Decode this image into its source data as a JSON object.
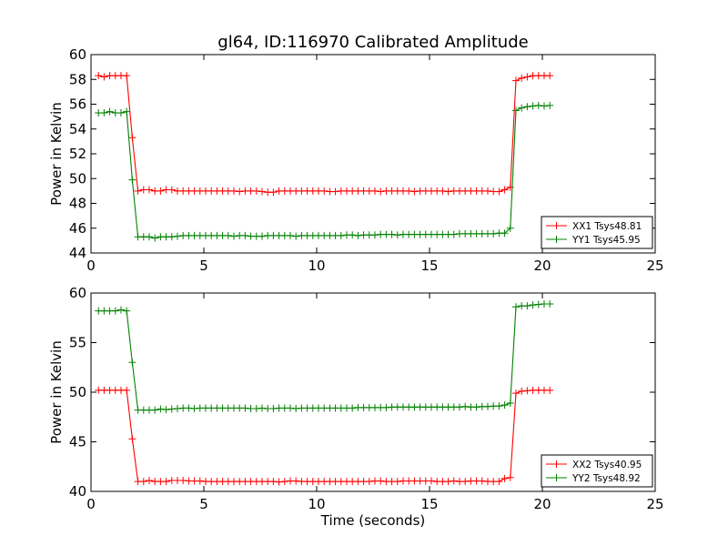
{
  "chart_data": [
    {
      "type": "line",
      "title": "gl64, ID:116970 Calibrated Amplitude",
      "xlabel": "",
      "ylabel": "Power in Kelvin",
      "xlim": [
        0,
        25
      ],
      "ylim": [
        44,
        60
      ],
      "xticks": [
        0,
        5,
        10,
        15,
        20,
        25
      ],
      "yticks": [
        44,
        46,
        48,
        50,
        52,
        54,
        56,
        58,
        60
      ],
      "grid": false,
      "legend_position": "lower-right",
      "series": [
        {
          "name": "XX1 Tsys48.81",
          "color": "#ff0000",
          "marker": "+",
          "x": [
            0.33,
            0.58,
            0.83,
            1.08,
            1.33,
            1.58,
            1.83,
            2.08,
            2.33,
            2.58,
            2.83,
            3.08,
            3.33,
            3.58,
            3.83,
            4.08,
            4.33,
            4.58,
            4.83,
            5.08,
            5.33,
            5.58,
            5.83,
            6.08,
            6.33,
            6.58,
            6.83,
            7.08,
            7.33,
            7.58,
            7.83,
            8.08,
            8.33,
            8.58,
            8.83,
            9.08,
            9.33,
            9.58,
            9.83,
            10.08,
            10.33,
            10.58,
            10.83,
            11.08,
            11.33,
            11.58,
            11.83,
            12.08,
            12.33,
            12.58,
            12.83,
            13.08,
            13.33,
            13.58,
            13.83,
            14.08,
            14.33,
            14.58,
            14.83,
            15.08,
            15.33,
            15.58,
            15.83,
            16.08,
            16.33,
            16.58,
            16.83,
            17.08,
            17.33,
            17.58,
            17.83,
            18.08,
            18.33,
            18.58,
            18.83,
            19.08,
            19.33,
            19.58,
            19.83,
            20.08,
            20.33
          ],
          "y": [
            58.3,
            58.2,
            58.3,
            58.3,
            58.3,
            58.3,
            53.3,
            49.0,
            49.1,
            49.1,
            49.0,
            49.0,
            49.1,
            49.1,
            49.0,
            49.0,
            49.0,
            49.0,
            49.0,
            49.0,
            49.0,
            49.0,
            49.0,
            49.0,
            49.0,
            48.95,
            49.0,
            49.0,
            49.0,
            48.95,
            48.9,
            48.9,
            49.0,
            49.0,
            49.0,
            49.0,
            49.0,
            49.0,
            49.0,
            49.0,
            49.0,
            48.95,
            48.95,
            49.0,
            49.0,
            49.0,
            49.0,
            49.0,
            49.0,
            49.0,
            48.95,
            49.0,
            49.0,
            49.0,
            49.0,
            49.0,
            48.95,
            49.0,
            49.0,
            49.0,
            49.0,
            49.0,
            48.95,
            49.0,
            49.0,
            49.0,
            49.0,
            49.0,
            49.0,
            49.0,
            48.95,
            48.95,
            49.1,
            49.3,
            57.9,
            58.1,
            58.2,
            58.3,
            58.3,
            58.3,
            58.3
          ]
        },
        {
          "name": "YY1 Tsys45.95",
          "color": "#008000",
          "marker": "+",
          "x": [
            0.33,
            0.58,
            0.83,
            1.08,
            1.33,
            1.58,
            1.83,
            2.08,
            2.33,
            2.58,
            2.83,
            3.08,
            3.33,
            3.58,
            3.83,
            4.08,
            4.33,
            4.58,
            4.83,
            5.08,
            5.33,
            5.58,
            5.83,
            6.08,
            6.33,
            6.58,
            6.83,
            7.08,
            7.33,
            7.58,
            7.83,
            8.08,
            8.33,
            8.58,
            8.83,
            9.08,
            9.33,
            9.58,
            9.83,
            10.08,
            10.33,
            10.58,
            10.83,
            11.08,
            11.33,
            11.58,
            11.83,
            12.08,
            12.33,
            12.58,
            12.83,
            13.08,
            13.33,
            13.58,
            13.83,
            14.08,
            14.33,
            14.58,
            14.83,
            15.08,
            15.33,
            15.58,
            15.83,
            16.08,
            16.33,
            16.58,
            16.83,
            17.08,
            17.33,
            17.58,
            17.83,
            18.08,
            18.33,
            18.58,
            18.83,
            19.08,
            19.33,
            19.58,
            19.83,
            20.08,
            20.33
          ],
          "y": [
            55.3,
            55.3,
            55.4,
            55.3,
            55.3,
            55.4,
            49.9,
            45.3,
            45.3,
            45.3,
            45.2,
            45.3,
            45.3,
            45.3,
            45.35,
            45.4,
            45.4,
            45.4,
            45.4,
            45.4,
            45.4,
            45.4,
            45.4,
            45.4,
            45.35,
            45.4,
            45.4,
            45.35,
            45.35,
            45.35,
            45.4,
            45.4,
            45.4,
            45.4,
            45.4,
            45.35,
            45.4,
            45.4,
            45.4,
            45.4,
            45.4,
            45.4,
            45.4,
            45.4,
            45.45,
            45.45,
            45.4,
            45.45,
            45.45,
            45.45,
            45.5,
            45.5,
            45.5,
            45.45,
            45.5,
            45.5,
            45.5,
            45.5,
            45.5,
            45.5,
            45.5,
            45.5,
            45.5,
            45.5,
            45.55,
            45.55,
            45.55,
            45.55,
            45.55,
            45.55,
            45.55,
            45.6,
            45.6,
            46.0,
            55.5,
            55.7,
            55.8,
            55.85,
            55.9,
            55.85,
            55.9
          ]
        }
      ]
    },
    {
      "type": "line",
      "title": "",
      "xlabel": "Time (seconds)",
      "ylabel": "Power in Kelvin",
      "xlim": [
        0,
        25
      ],
      "ylim": [
        40,
        60
      ],
      "xticks": [
        0,
        5,
        10,
        15,
        20,
        25
      ],
      "yticks": [
        40,
        45,
        50,
        55,
        60
      ],
      "grid": false,
      "legend_position": "lower-right",
      "series": [
        {
          "name": "XX2 Tsys40.95",
          "color": "#ff0000",
          "marker": "+",
          "x": [
            0.33,
            0.58,
            0.83,
            1.08,
            1.33,
            1.58,
            1.83,
            2.08,
            2.33,
            2.58,
            2.83,
            3.08,
            3.33,
            3.58,
            3.83,
            4.08,
            4.33,
            4.58,
            4.83,
            5.08,
            5.33,
            5.58,
            5.83,
            6.08,
            6.33,
            6.58,
            6.83,
            7.08,
            7.33,
            7.58,
            7.83,
            8.08,
            8.33,
            8.58,
            8.83,
            9.08,
            9.33,
            9.58,
            9.83,
            10.08,
            10.33,
            10.58,
            10.83,
            11.08,
            11.33,
            11.58,
            11.83,
            12.08,
            12.33,
            12.58,
            12.83,
            13.08,
            13.33,
            13.58,
            13.83,
            14.08,
            14.33,
            14.58,
            14.83,
            15.08,
            15.33,
            15.58,
            15.83,
            16.08,
            16.33,
            16.58,
            16.83,
            17.08,
            17.33,
            17.58,
            17.83,
            18.08,
            18.33,
            18.58,
            18.83,
            19.08,
            19.33,
            19.58,
            19.83,
            20.08,
            20.33
          ],
          "y": [
            50.2,
            50.2,
            50.2,
            50.2,
            50.2,
            50.2,
            45.3,
            41.0,
            41.0,
            41.1,
            41.0,
            41.0,
            41.0,
            41.1,
            41.1,
            41.1,
            41.05,
            41.05,
            41.05,
            41.0,
            41.0,
            41.0,
            41.0,
            41.0,
            41.0,
            41.0,
            41.0,
            41.0,
            41.0,
            41.0,
            41.0,
            41.0,
            40.95,
            41.0,
            41.05,
            41.05,
            41.0,
            41.0,
            41.0,
            41.0,
            41.0,
            41.0,
            41.0,
            41.0,
            41.0,
            41.0,
            41.0,
            41.0,
            41.0,
            41.05,
            41.05,
            41.0,
            41.0,
            41.0,
            41.05,
            41.05,
            41.05,
            41.05,
            41.05,
            41.05,
            41.0,
            41.0,
            41.0,
            41.05,
            41.0,
            41.0,
            41.05,
            41.05,
            41.05,
            41.0,
            41.0,
            41.0,
            41.3,
            41.4,
            49.9,
            50.1,
            50.15,
            50.2,
            50.2,
            50.2,
            50.2
          ]
        },
        {
          "name": "YY2 Tsys48.92",
          "color": "#008000",
          "marker": "+",
          "x": [
            0.33,
            0.58,
            0.83,
            1.08,
            1.33,
            1.58,
            1.83,
            2.08,
            2.33,
            2.58,
            2.83,
            3.08,
            3.33,
            3.58,
            3.83,
            4.08,
            4.33,
            4.58,
            4.83,
            5.08,
            5.33,
            5.58,
            5.83,
            6.08,
            6.33,
            6.58,
            6.83,
            7.08,
            7.33,
            7.58,
            7.83,
            8.08,
            8.33,
            8.58,
            8.83,
            9.08,
            9.33,
            9.58,
            9.83,
            10.08,
            10.33,
            10.58,
            10.83,
            11.08,
            11.33,
            11.58,
            11.83,
            12.08,
            12.33,
            12.58,
            12.83,
            13.08,
            13.33,
            13.58,
            13.83,
            14.08,
            14.33,
            14.58,
            14.83,
            15.08,
            15.33,
            15.58,
            15.83,
            16.08,
            16.33,
            16.58,
            16.83,
            17.08,
            17.33,
            17.58,
            17.83,
            18.08,
            18.33,
            18.58,
            18.83,
            19.08,
            19.33,
            19.58,
            19.83,
            20.08,
            20.33
          ],
          "y": [
            58.2,
            58.2,
            58.2,
            58.2,
            58.3,
            58.2,
            53.0,
            48.2,
            48.2,
            48.2,
            48.2,
            48.3,
            48.25,
            48.3,
            48.35,
            48.4,
            48.4,
            48.35,
            48.4,
            48.4,
            48.4,
            48.4,
            48.4,
            48.4,
            48.4,
            48.4,
            48.4,
            48.35,
            48.35,
            48.4,
            48.35,
            48.35,
            48.4,
            48.4,
            48.4,
            48.35,
            48.4,
            48.4,
            48.4,
            48.4,
            48.4,
            48.4,
            48.4,
            48.4,
            48.4,
            48.4,
            48.45,
            48.45,
            48.45,
            48.45,
            48.45,
            48.45,
            48.5,
            48.5,
            48.5,
            48.5,
            48.5,
            48.5,
            48.5,
            48.5,
            48.5,
            48.5,
            48.5,
            48.5,
            48.5,
            48.55,
            48.5,
            48.5,
            48.55,
            48.55,
            48.6,
            48.6,
            48.7,
            48.9,
            58.6,
            58.7,
            58.7,
            58.8,
            58.85,
            58.9,
            58.9
          ]
        }
      ]
    }
  ]
}
